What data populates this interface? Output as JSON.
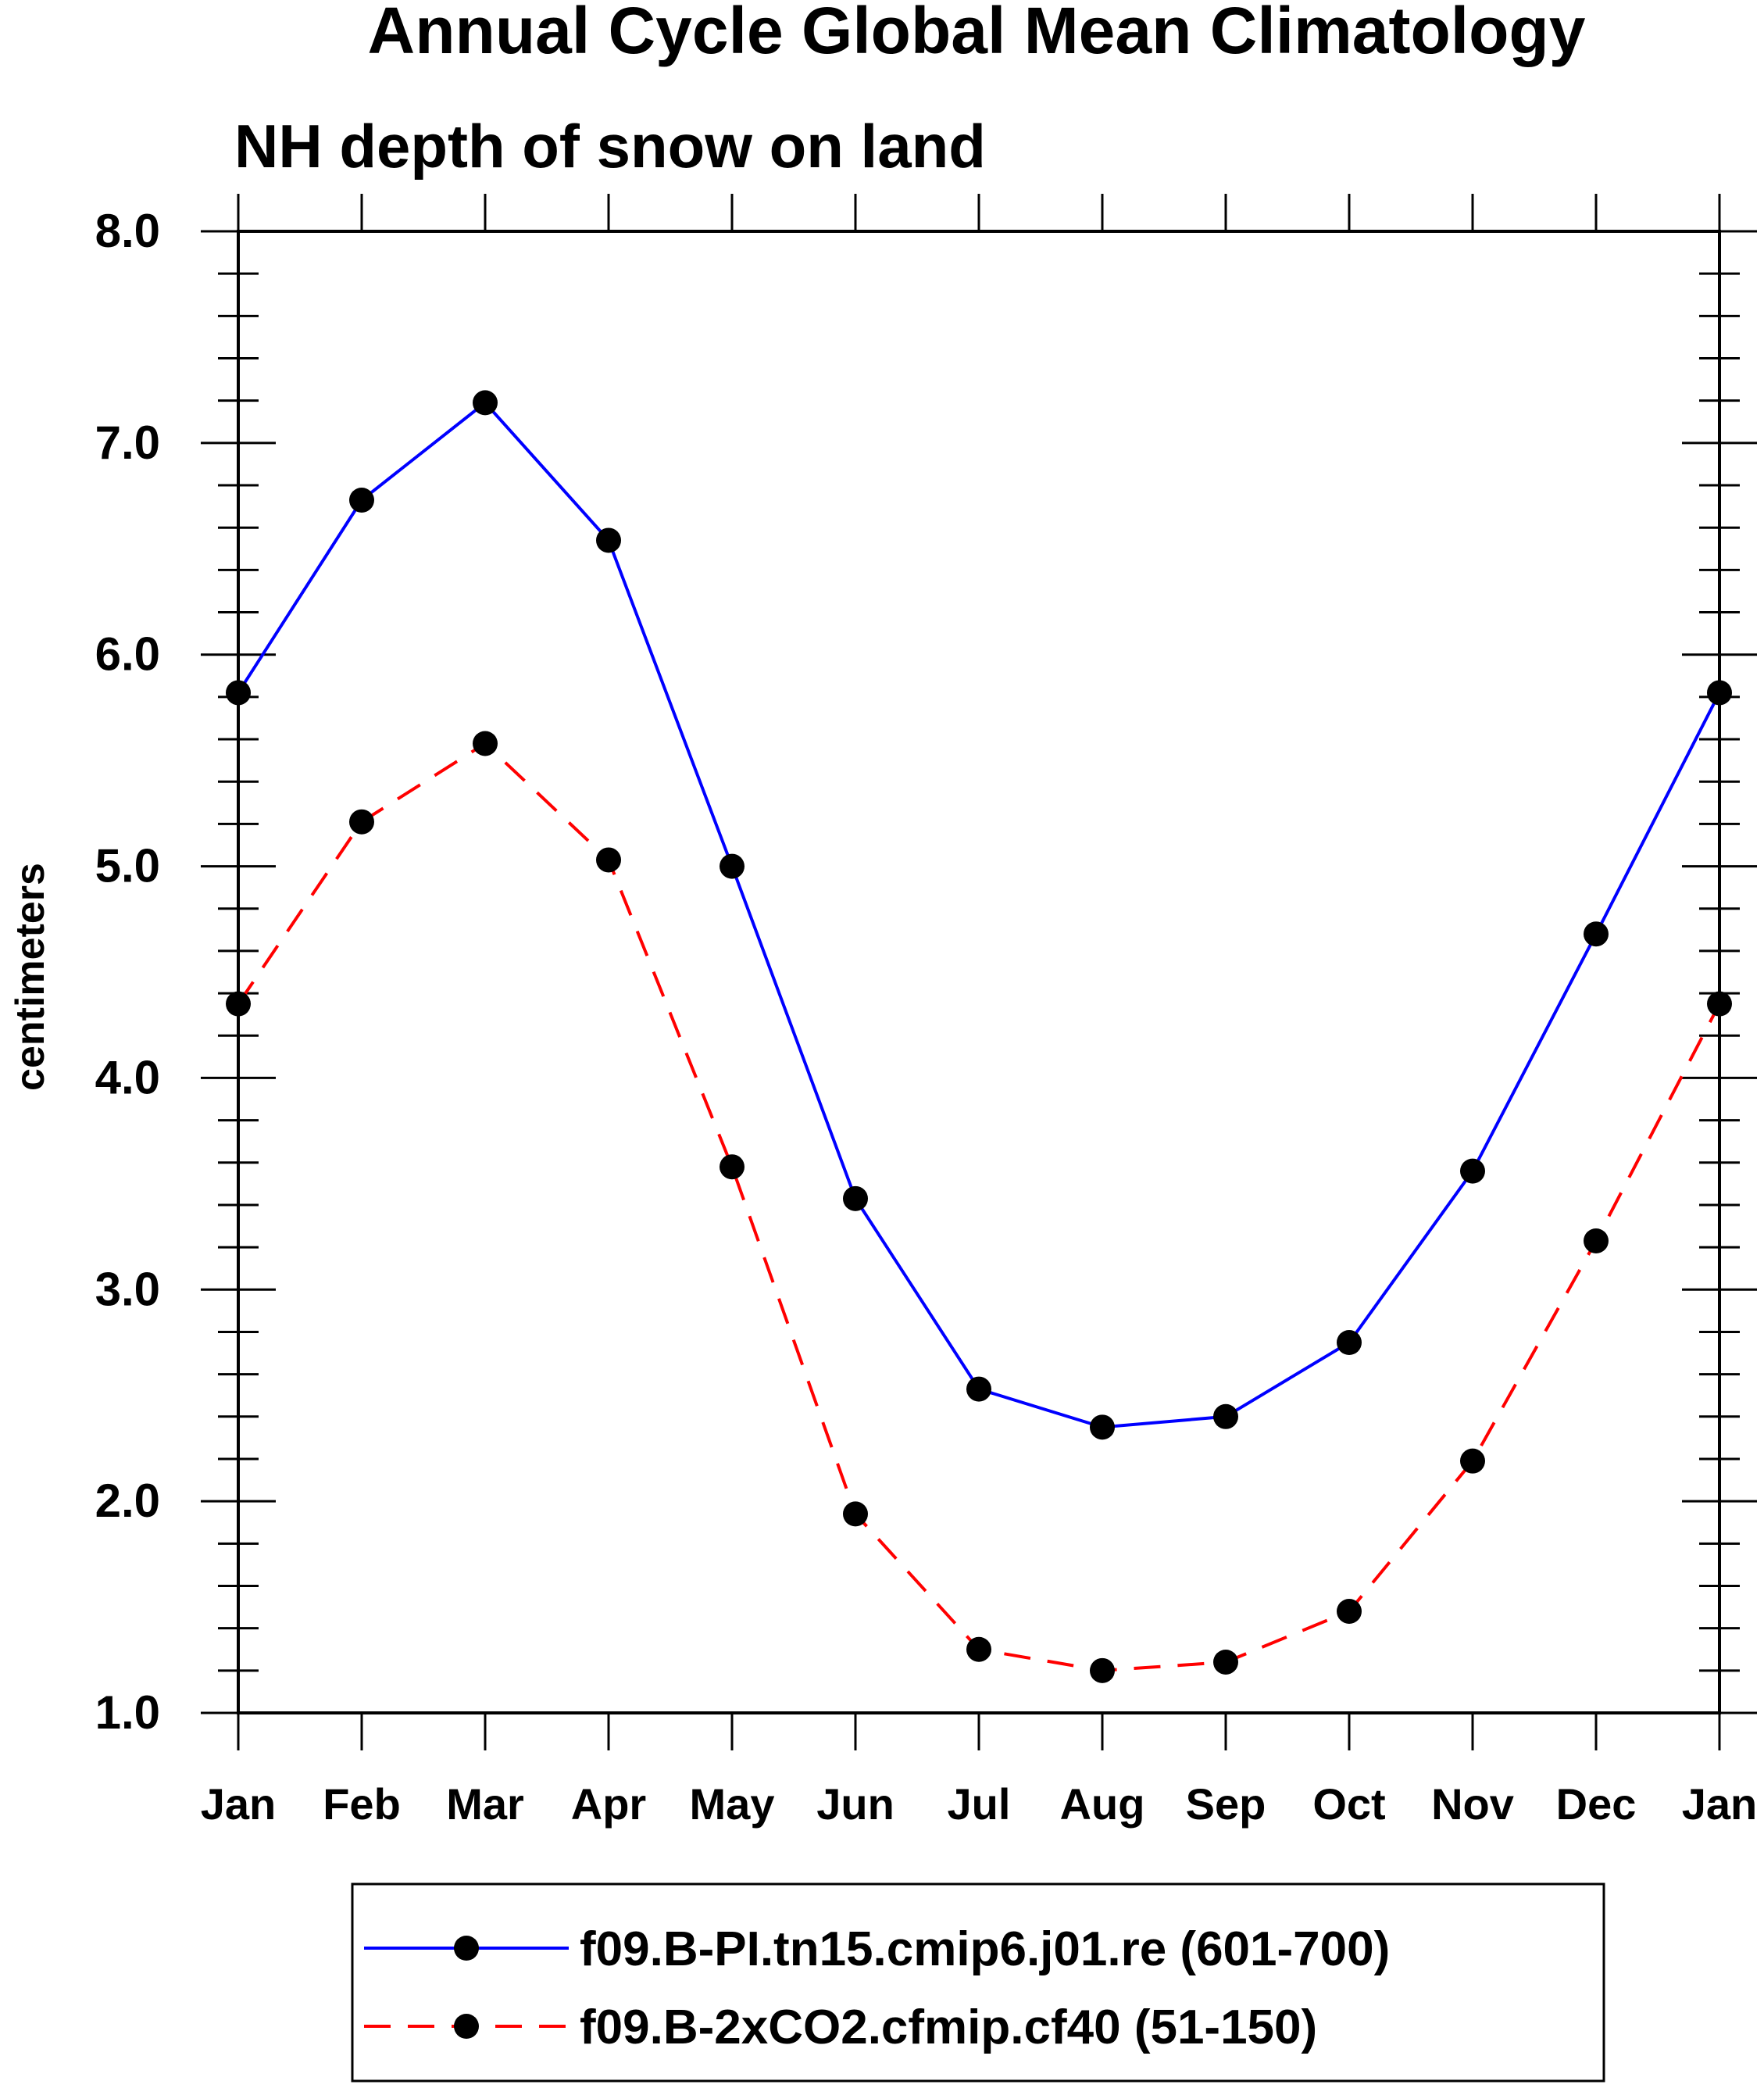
{
  "chart_data": {
    "type": "line",
    "title": "Annual Cycle Global Mean Climatology",
    "subtitle": "NH depth of snow on land",
    "xlabel": "",
    "ylabel": "centimeters",
    "categories": [
      "Jan",
      "Feb",
      "Mar",
      "Apr",
      "May",
      "Jun",
      "Jul",
      "Aug",
      "Sep",
      "Oct",
      "Nov",
      "Dec",
      "Jan"
    ],
    "ylim": [
      1.0,
      8.0
    ],
    "yticks": [
      "1.0",
      "2.0",
      "3.0",
      "4.0",
      "5.0",
      "6.0",
      "7.0",
      "8.0"
    ],
    "grid": false,
    "legend_position": "bottom-center",
    "series": [
      {
        "name": "f09.B-PI.tn15.cmip6.j01.re (601-700)",
        "color": "#0000ff",
        "dash": "solid",
        "marker": "filled-circle",
        "values": [
          5.82,
          6.73,
          7.19,
          6.54,
          5.0,
          3.43,
          2.53,
          2.35,
          2.4,
          2.75,
          3.56,
          4.68,
          5.82
        ]
      },
      {
        "name": "f09.B-2xCO2.cfmip.cf40 (51-150)",
        "color": "#ff0000",
        "dash": "dashed",
        "marker": "filled-circle",
        "values": [
          4.35,
          5.21,
          5.58,
          5.03,
          3.58,
          1.94,
          1.3,
          1.2,
          1.24,
          1.48,
          2.19,
          3.23,
          4.35
        ]
      }
    ]
  }
}
